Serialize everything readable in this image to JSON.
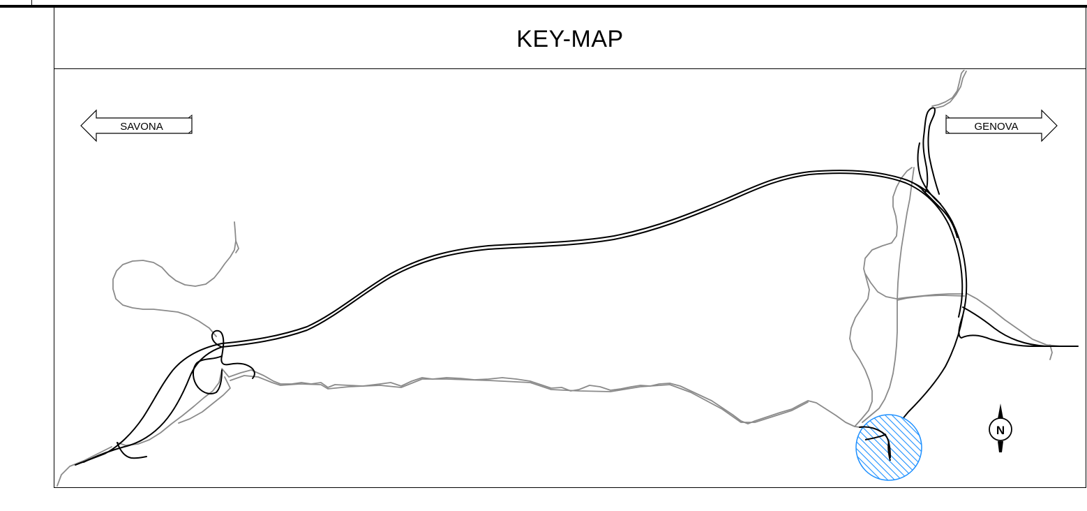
{
  "title": "KEY-MAP",
  "directions": {
    "west": "SAVONA",
    "east": "GENOVA"
  },
  "north_arrow": {
    "label": "N",
    "icon": "north-arrow-icon"
  },
  "site_marker": {
    "icon": "hatched-circle-icon",
    "color": "#1e90ff"
  },
  "colors": {
    "main_road": "#000000",
    "secondary_road": "#8a8a8a",
    "site_highlight": "#1e90ff"
  }
}
